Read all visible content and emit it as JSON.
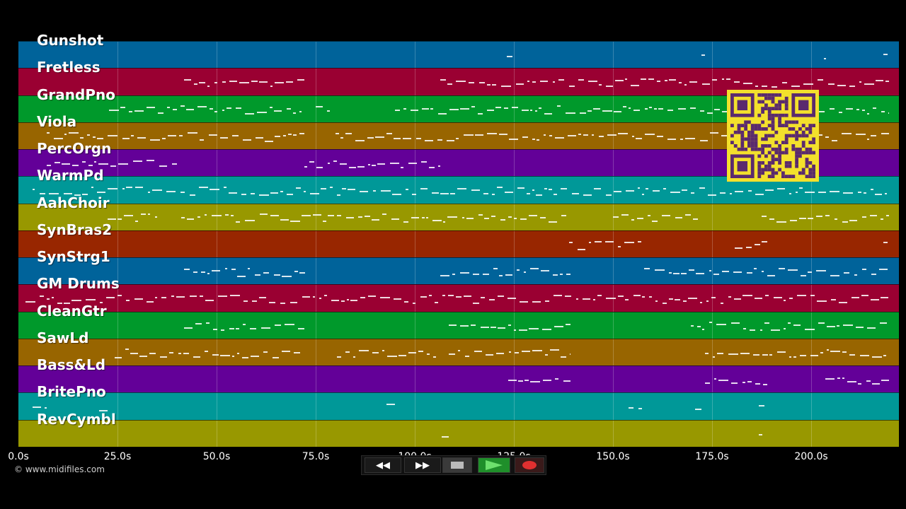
{
  "tracks": [
    {
      "name": "Gunshot",
      "color": "#00639a"
    },
    {
      "name": "Fretless",
      "color": "#9a0032"
    },
    {
      "name": "GrandPno",
      "color": "#00992b"
    },
    {
      "name": "Viola",
      "color": "#986500"
    },
    {
      "name": "PercOrgn",
      "color": "#630098"
    },
    {
      "name": "WarmPd",
      "color": "#009898"
    },
    {
      "name": "AahChoir",
      "color": "#989800"
    },
    {
      "name": "SynBras2",
      "color": "#982600"
    },
    {
      "name": "SynStrg1",
      "color": "#00639a"
    },
    {
      "name": "GM Drums",
      "color": "#9a0032"
    },
    {
      "name": "CleanGtr",
      "color": "#00992b"
    },
    {
      "name": "SawLd",
      "color": "#986500"
    },
    {
      "name": "Bass&Ld",
      "color": "#630098"
    },
    {
      "name": "BritePno",
      "color": "#009898"
    },
    {
      "name": "RevCymbl",
      "color": "#989800"
    }
  ],
  "axis": {
    "ticks": [
      "0.0s",
      "25.0s",
      "50.0s",
      "75.0s",
      "100.0s",
      "125.0s",
      "150.0s",
      "175.0s",
      "200.0s"
    ]
  },
  "copyright": "© www.midifiles.com",
  "transport": {
    "rewind_icon": "rewind-icon",
    "forward_icon": "fast-forward-icon",
    "stop_icon": "stop-icon",
    "play_icon": "play-icon",
    "record_icon": "record-icon",
    "play_color": "#1f8f2a",
    "record_color": "#e03030"
  },
  "qr": {
    "color": "#f3e02c",
    "ink": "#5a2a6e"
  }
}
